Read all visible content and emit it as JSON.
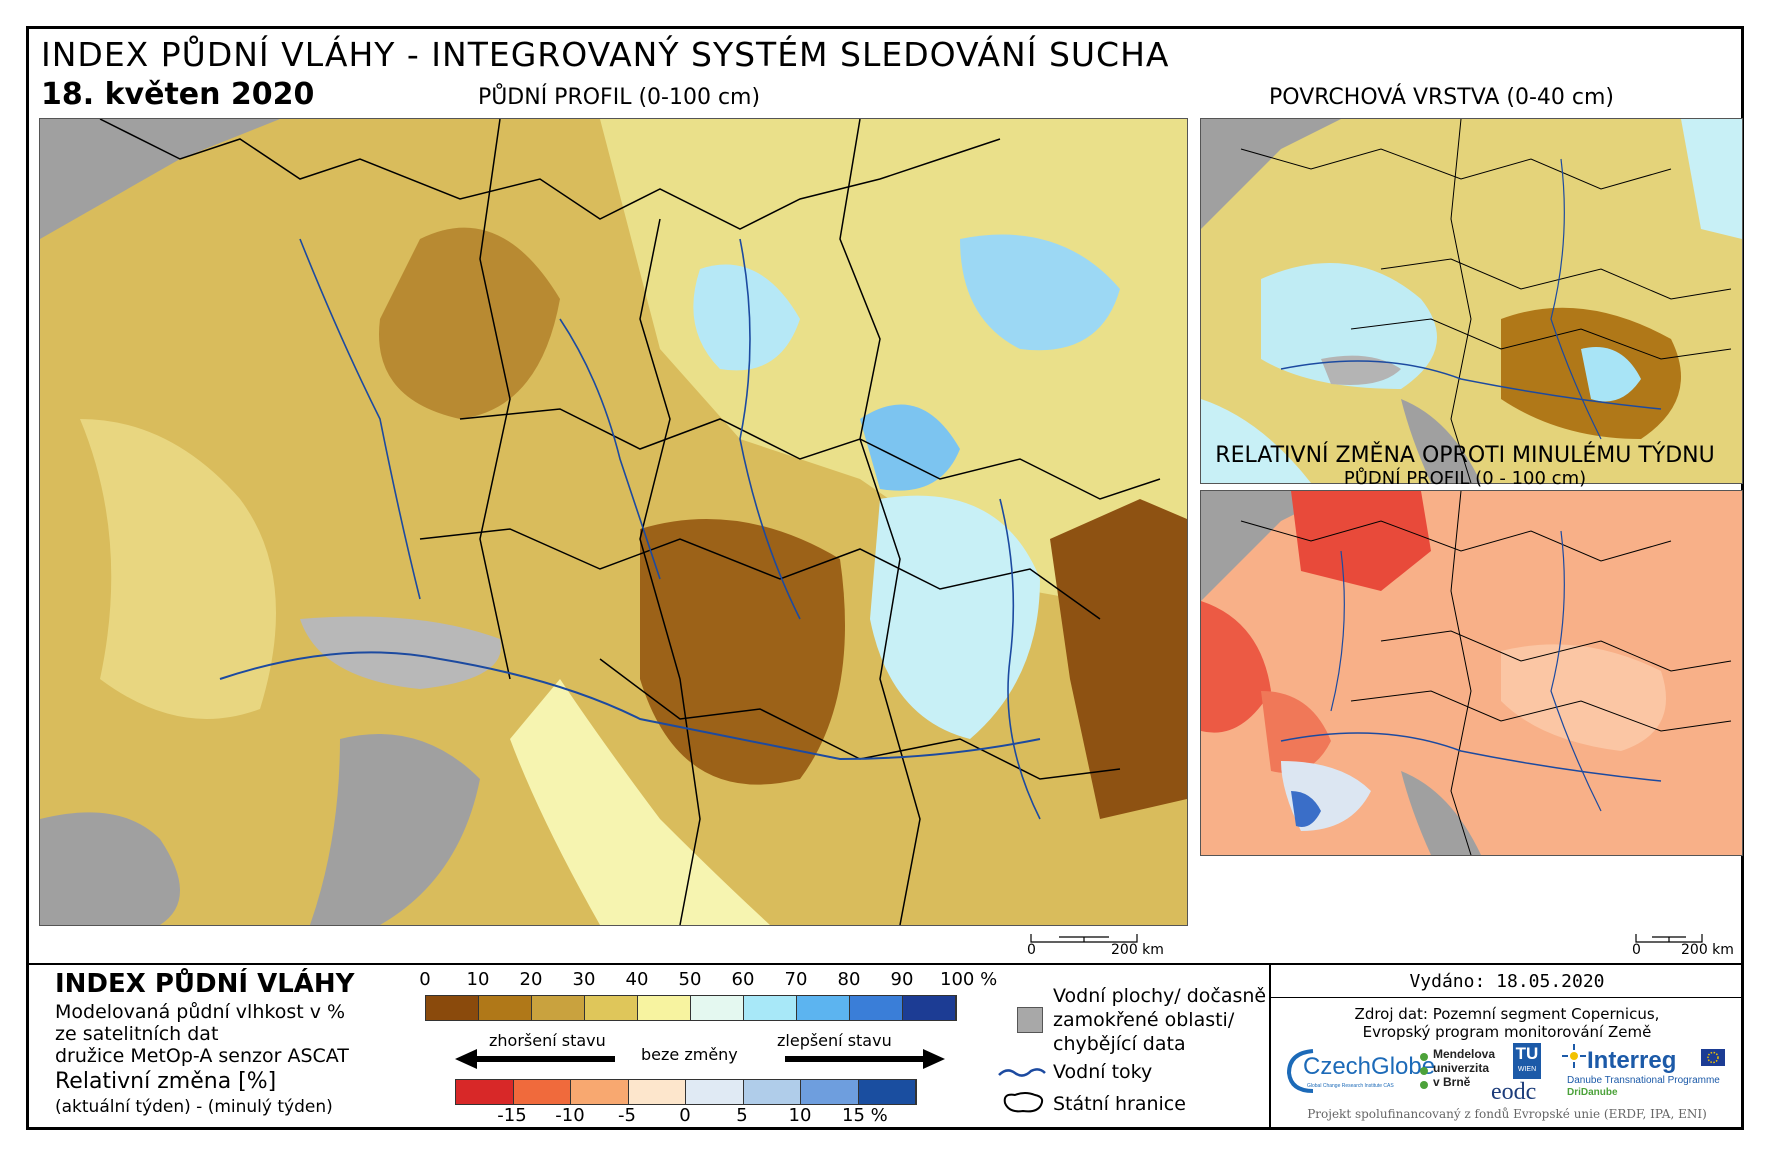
{
  "header": {
    "title": "INDEX PŮDNÍ VLÁHY - INTEGROVANÝ SYSTÉM SLEDOVÁNÍ SUCHA",
    "date": "18. květen 2020"
  },
  "maps": {
    "main": {
      "title": "PŮDNÍ PROFIL (0-100 cm)"
    },
    "surface": {
      "title": "POVRCHOVÁ VRSTVA (0-40 cm)"
    },
    "change": {
      "title": "RELATIVNÍ ZMĚNA OPROTI MINULÉMU TÝDNU",
      "subtitle": "PŮDNÍ PROFIL (0 - 100 cm)"
    },
    "scale_main": {
      "zero": "0",
      "label": "200 km"
    },
    "scale_small": {
      "zero": "0",
      "label": "200 km"
    }
  },
  "legend": {
    "title": "INDEX PŮDNÍ VLÁHY",
    "desc_line1": "Modelovaná půdní vlhkost v %",
    "desc_line2": "ze satelitních dat",
    "desc_line3": "družice MetOp-A senzor ASCAT",
    "change_title": "Relativní změna [%]",
    "change_desc": "(aktuální týden) - (minulý týden)",
    "index_ticks": [
      "0",
      "10",
      "20",
      "30",
      "40",
      "50",
      "60",
      "70",
      "80",
      "90",
      "100 %"
    ],
    "index_colors": [
      "#8a4a0c",
      "#b07818",
      "#c9a23e",
      "#dfc65a",
      "#f7f3a0",
      "#e4f8f0",
      "#a8e8f8",
      "#5cb4f0",
      "#3a7ed8",
      "#1c3c94"
    ],
    "worse_label": "zhoršení stavu",
    "nochange_label": "beze změny",
    "better_label": "zlepšení stavu",
    "change_ticks": [
      "-15",
      "-10",
      "-5",
      "0",
      "5",
      "10",
      "15 %"
    ],
    "change_colors": [
      "#d82828",
      "#f06a3c",
      "#f8a870",
      "#fde6cc",
      "#e0eaf4",
      "#b0cdea",
      "#6e9ede",
      "#1a4ea0"
    ],
    "water_label_line1": "Vodní plochy/ dočasně",
    "water_label_line2": "zamokřené oblasti/",
    "water_label_line3": "chybějící data",
    "rivers_label": "Vodní toky",
    "borders_label": "Státní hranice",
    "gray_color": "#a8a8a8",
    "river_color": "#1c4aa0"
  },
  "footer": {
    "issued": "Vydáno: 18.05.2020",
    "source_line1": "Zdroj dat: Pozemní segment Copernicus,",
    "source_line2": "Evropský program monitorování Země",
    "logo_czechglobe": "CzechGlobe",
    "logo_czechglobe_sub": "Global Change Research Institute CAS",
    "logo_mendel_1": "Mendelova",
    "logo_mendel_2": "univerzita",
    "logo_mendel_3": "v Brně",
    "logo_tu_1": "TU",
    "logo_tu_2": "WIEN",
    "logo_eodc": "eodc",
    "logo_interreg": "Interreg",
    "logo_interreg_sub1": "Danube Transnational Programme",
    "logo_interreg_sub2": "DriDanube",
    "funding": "Projekt spolufinancovaný z fondů Evropské unie (ERDF, IPA, ENI)"
  }
}
